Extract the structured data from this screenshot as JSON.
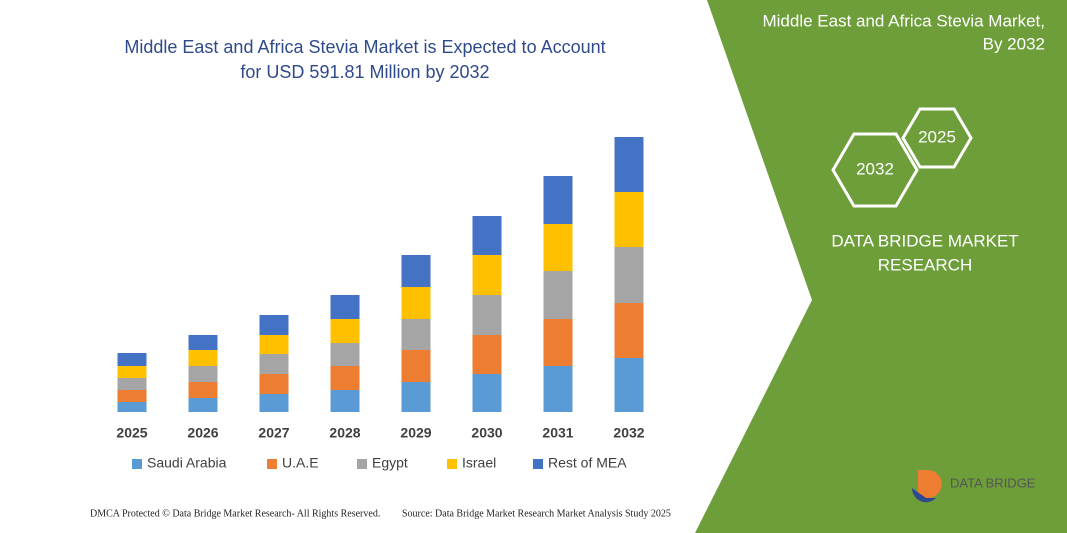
{
  "chart_data": {
    "type": "bar",
    "stacked": true,
    "title_lines": [
      "Middle East and Africa Stevia Market is Expected to Account",
      "for USD 591.81 Million by 2032"
    ],
    "categories": [
      "2025",
      "2026",
      "2027",
      "2028",
      "2029",
      "2030",
      "2031",
      "2032"
    ],
    "series": [
      {
        "name": "Saudi Arabia",
        "color": "#5b9bd5",
        "values": [
          10,
          14,
          18,
          22,
          30,
          38,
          46,
          54
        ]
      },
      {
        "name": "U.A.E",
        "color": "#ed7d31",
        "values": [
          12,
          16,
          20,
          24,
          32,
          39,
          47,
          55
        ]
      },
      {
        "name": "Egypt",
        "color": "#a5a5a5",
        "values": [
          12,
          16,
          20,
          23,
          31,
          40,
          48,
          56
        ]
      },
      {
        "name": "Israel",
        "color": "#ffc000",
        "values": [
          12,
          16,
          19,
          24,
          32,
          40,
          47,
          55
        ]
      },
      {
        "name": "Rest of MEA",
        "color": "#4472c4",
        "values": [
          13,
          15,
          20,
          24,
          32,
          39,
          48,
          55
        ]
      }
    ]
  },
  "panel": {
    "title_lines": [
      "Middle East and Africa Stevia Market,",
      "By 2032"
    ],
    "hexagons": [
      "2025",
      "2032"
    ],
    "brand_lines": [
      "DATA BRIDGE MARKET",
      "RESEARCH"
    ]
  },
  "logo": "DATA BRIDGE",
  "footer": {
    "left": "DMCA Protected © Data Bridge Market Research- All Rights Reserved.",
    "right": "Source: Data Bridge Market Research  Market Analysis Study 2025"
  }
}
